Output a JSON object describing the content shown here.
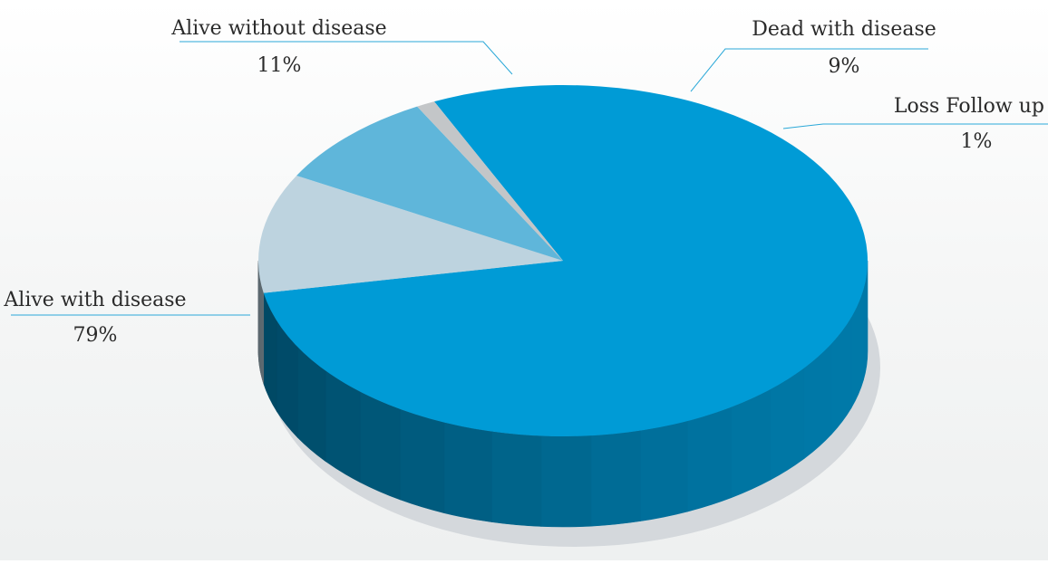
{
  "chart_data": {
    "type": "pie",
    "style": "3d",
    "slices": [
      {
        "label": "Alive with disease",
        "value": 79,
        "value_label": "79%",
        "color": "#009bd6",
        "side_color": "#0079a8"
      },
      {
        "label": "Alive without disease",
        "value": 11,
        "value_label": "11%",
        "color": "#bdd3df",
        "side_color": "#9fb4c0"
      },
      {
        "label": "Dead with disease",
        "value": 9,
        "value_label": "9%",
        "color": "#5fb6da",
        "side_color": "#3e95b8"
      },
      {
        "label": "Loss Follow up",
        "value": 1,
        "value_label": "1%",
        "color": "#c3c6c8",
        "side_color": "#a5a8aa"
      }
    ],
    "leader_line_color": "#2aa8d8",
    "shadow_color": "#d4d8dc"
  }
}
